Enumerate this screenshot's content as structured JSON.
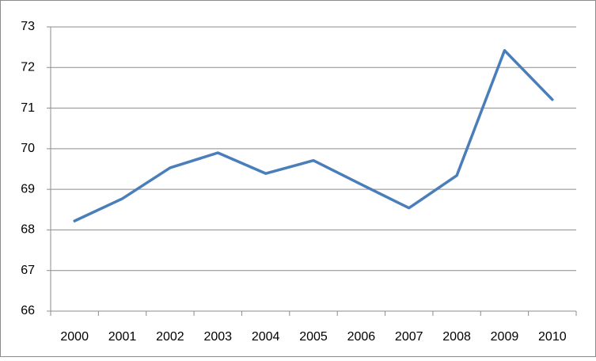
{
  "chart_data": {
    "type": "line",
    "categories": [
      "2000",
      "2001",
      "2002",
      "2003",
      "2004",
      "2005",
      "2006",
      "2007",
      "2008",
      "2009",
      "2010"
    ],
    "series": [
      {
        "color": "#4a7ebb",
        "values": [
          68.22,
          68.77,
          69.53,
          69.9,
          69.39,
          69.71,
          69.12,
          68.54,
          69.34,
          72.42,
          71.21
        ]
      }
    ],
    "ylim": [
      66,
      73
    ],
    "yticks": [
      66,
      67,
      68,
      69,
      70,
      71,
      72,
      73
    ],
    "grid": true
  }
}
